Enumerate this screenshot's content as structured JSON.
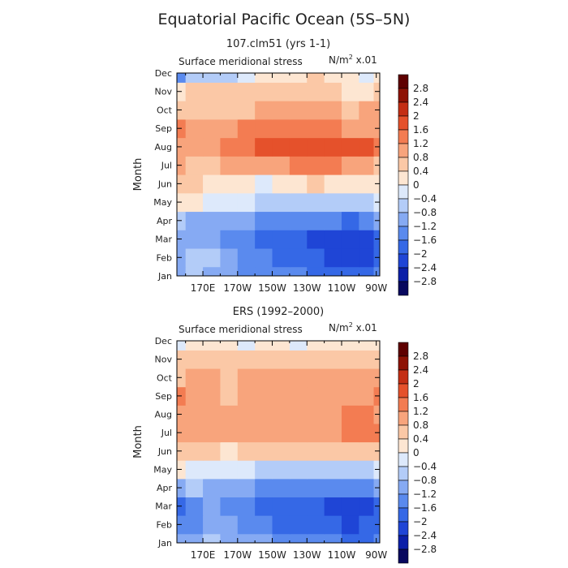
{
  "figure": {
    "title": "Equatorial Pacific Ocean (5S–5N)"
  },
  "colorbar": {
    "levels": [
      -2.8,
      -2.4,
      -2.0,
      -1.6,
      -1.2,
      -0.8,
      -0.4,
      0,
      0.4,
      0.8,
      1.2,
      1.6,
      2.0,
      2.4,
      2.8
    ],
    "labels": [
      "−2.8",
      "−2.4",
      "−2",
      "−1.6",
      "−1.2",
      "−0.8",
      "−0.4",
      "0",
      "0.4",
      "0.8",
      "1.2",
      "1.6",
      "2",
      "2.4",
      "2.8"
    ],
    "colors": [
      "#08085e",
      "#0b1fa8",
      "#1f45d6",
      "#3568e6",
      "#5a8aee",
      "#86aaf3",
      "#b3ccf8",
      "#dde9fb",
      "#fde6d2",
      "#fbc8a6",
      "#f8a47c",
      "#f37c52",
      "#e5512b",
      "#c42e14",
      "#8e1204",
      "#5e0000"
    ]
  },
  "chart_data": [
    {
      "type": "heatmap",
      "title": "107.clm51 (yrs 1-1)",
      "subtitle_left": "Surface meridional stress",
      "units_label": "N/m",
      "units_sup": "2",
      "units_scale": "x.01",
      "ylabel": "Month",
      "x_ticks": [
        "170E",
        "170W",
        "150W",
        "130W",
        "110W",
        "90W"
      ],
      "x_tick_lon": [
        170,
        190,
        210,
        230,
        250,
        270
      ],
      "xlim_lon": [
        155,
        272
      ],
      "y_ticks": [
        "Jan",
        "Feb",
        "Mar",
        "Apr",
        "May",
        "Jun",
        "Jul",
        "Aug",
        "Sep",
        "Oct",
        "Nov",
        "Dec"
      ],
      "grid_lon": [
        155,
        165,
        175,
        185,
        195,
        205,
        215,
        225,
        235,
        245,
        255,
        265,
        272
      ],
      "values": [
        [
          -1.0,
          -0.8,
          -0.9,
          -1.2,
          -1.4,
          -1.4,
          -1.5,
          -1.6,
          -1.7,
          -1.8,
          -1.8,
          -1.7,
          -1.4
        ],
        [
          -1.0,
          -0.7,
          -0.8,
          -1.0,
          -1.4,
          -1.6,
          -1.8,
          -1.9,
          -2.0,
          -2.1,
          -2.2,
          -2.1,
          -1.8
        ],
        [
          -1.2,
          -1.0,
          -1.0,
          -1.3,
          -1.5,
          -1.8,
          -2.0,
          -2.0,
          -2.1,
          -2.2,
          -2.4,
          -2.3,
          -1.9
        ],
        [
          -0.8,
          -0.9,
          -1.0,
          -1.1,
          -1.2,
          -1.4,
          -1.6,
          -1.6,
          -1.6,
          -1.6,
          -1.8,
          -1.6,
          -1.2
        ],
        [
          0.2,
          0.1,
          -0.1,
          -0.3,
          -0.4,
          -0.6,
          -0.6,
          -0.7,
          -0.8,
          -0.8,
          -0.6,
          -0.5,
          -0.2
        ],
        [
          0.5,
          0.4,
          0.3,
          0.2,
          0.1,
          -0.1,
          0.1,
          0.3,
          0.4,
          0.3,
          0.1,
          0.0,
          0.2
        ],
        [
          0.8,
          0.7,
          0.6,
          0.8,
          0.9,
          1.1,
          1.1,
          1.2,
          1.2,
          1.2,
          1.0,
          0.8,
          0.6
        ],
        [
          1.0,
          0.9,
          1.1,
          1.4,
          1.3,
          1.6,
          1.6,
          1.6,
          1.7,
          1.7,
          1.7,
          1.8,
          1.4
        ],
        [
          1.2,
          0.9,
          0.9,
          1.1,
          1.2,
          1.4,
          1.3,
          1.4,
          1.3,
          1.2,
          1.1,
          1.1,
          1.0
        ],
        [
          0.6,
          0.5,
          0.6,
          0.7,
          0.7,
          0.8,
          0.8,
          0.8,
          0.8,
          0.8,
          0.7,
          0.8,
          0.9
        ],
        [
          0.3,
          0.4,
          0.4,
          0.4,
          0.4,
          0.5,
          0.5,
          0.4,
          0.4,
          0.4,
          0.3,
          0.2,
          0.4
        ],
        [
          -1.4,
          -0.8,
          -0.6,
          -0.5,
          -0.3,
          0.0,
          0.2,
          0.3,
          0.4,
          0.2,
          0.0,
          -0.2,
          0.3
        ]
      ]
    },
    {
      "type": "heatmap",
      "title": "ERS (1992–2000)",
      "subtitle_left": "Surface meridional stress",
      "units_label": "N/m",
      "units_sup": "2",
      "units_scale": "x.01",
      "ylabel": "Month",
      "x_ticks": [
        "170E",
        "170W",
        "150W",
        "130W",
        "110W",
        "90W"
      ],
      "x_tick_lon": [
        170,
        190,
        210,
        230,
        250,
        270
      ],
      "xlim_lon": [
        155,
        272
      ],
      "y_ticks": [
        "Jan",
        "Feb",
        "Mar",
        "Apr",
        "May",
        "Jun",
        "Jul",
        "Aug",
        "Sep",
        "Oct",
        "Nov",
        "Dec"
      ],
      "grid_lon": [
        155,
        165,
        175,
        185,
        195,
        205,
        215,
        225,
        235,
        245,
        255,
        265,
        272
      ],
      "values": [
        [
          -1.2,
          -0.9,
          -0.8,
          -1.0,
          -1.1,
          -1.2,
          -1.3,
          -1.5,
          -1.6,
          -1.6,
          -1.7,
          -1.7,
          -1.4
        ],
        [
          -1.6,
          -1.4,
          -1.1,
          -1.2,
          -1.4,
          -1.6,
          -1.8,
          -1.9,
          -1.9,
          -2.0,
          -2.1,
          -2.0,
          -1.7
        ],
        [
          -1.8,
          -1.5,
          -1.2,
          -1.3,
          -1.5,
          -1.7,
          -1.9,
          -2.0,
          -2.0,
          -2.2,
          -2.3,
          -2.4,
          -1.9
        ],
        [
          -0.9,
          -0.8,
          -0.9,
          -1.0,
          -1.1,
          -1.3,
          -1.4,
          -1.4,
          -1.5,
          -1.5,
          -1.6,
          -1.4,
          -1.2
        ],
        [
          0.1,
          -0.1,
          -0.2,
          -0.3,
          -0.4,
          -0.5,
          -0.6,
          -0.7,
          -0.8,
          -0.8,
          -0.7,
          -0.6,
          -0.4
        ],
        [
          0.5,
          0.4,
          0.5,
          0.3,
          0.4,
          0.4,
          0.5,
          0.5,
          0.4,
          0.4,
          0.5,
          0.5,
          0.6
        ],
        [
          0.8,
          0.9,
          0.8,
          0.8,
          0.9,
          1.0,
          1.0,
          0.9,
          1.0,
          1.1,
          1.3,
          1.4,
          1.2
        ],
        [
          1.0,
          1.0,
          0.9,
          0.8,
          1.0,
          1.1,
          1.0,
          1.0,
          1.0,
          1.1,
          1.2,
          1.3,
          1.1
        ],
        [
          1.3,
          1.0,
          0.8,
          0.7,
          0.9,
          1.0,
          0.9,
          0.8,
          0.9,
          1.0,
          1.0,
          1.1,
          1.2
        ],
        [
          0.7,
          0.8,
          0.8,
          0.7,
          0.8,
          0.9,
          0.8,
          0.8,
          0.9,
          0.9,
          0.8,
          0.9,
          1.0
        ],
        [
          0.4,
          0.5,
          0.6,
          0.5,
          0.5,
          0.6,
          0.6,
          0.5,
          0.6,
          0.7,
          0.6,
          0.7,
          0.6
        ],
        [
          -0.2,
          0.0,
          0.1,
          0.0,
          -0.1,
          0.1,
          0.0,
          -0.2,
          0.0,
          0.2,
          0.1,
          0.0,
          0.1
        ]
      ]
    }
  ]
}
